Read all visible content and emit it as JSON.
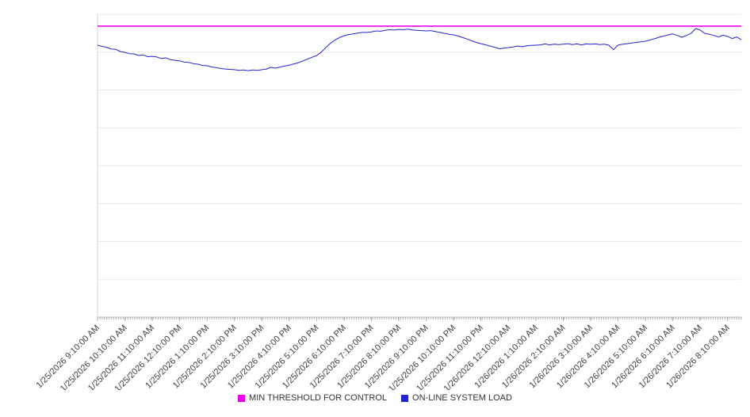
{
  "chart_data": {
    "type": "line",
    "title": "",
    "xlabel": "",
    "ylabel": "",
    "ylim": [
      0,
      100
    ],
    "gridline_count": 8,
    "grid_on": true,
    "legend_position": "bottom",
    "x_interval_minutes": 10,
    "x_labels": [
      "1/25/2026 9:10:00 AM",
      "1/25/2026 10:10:00 AM",
      "1/25/2026 11:10:00 AM",
      "1/25/2026 12:10:00 PM",
      "1/25/2026 1:10:00 PM",
      "1/25/2026 2:10:00 PM",
      "1/25/2026 3:10:00 PM",
      "1/25/2026 4:10:00 PM",
      "1/25/2026 5:10:00 PM",
      "1/25/2026 6:10:00 PM",
      "1/25/2026 7:10:00 PM",
      "1/25/2026 8:10:00 PM",
      "1/25/2026 9:10:00 PM",
      "1/25/2026 10:10:00 PM",
      "1/25/2026 11:10:00 PM",
      "1/26/2026 12:10:00 AM",
      "1/26/2026 1:10:00 AM",
      "1/26/2026 2:10:00 AM",
      "1/26/2026 3:10:00 AM",
      "1/26/2026 4:10:00 AM",
      "1/26/2026 5:10:00 AM",
      "1/26/2026 6:10:00 AM",
      "1/26/2026 7:10:00 AM",
      "1/26/2026 8:10:00 AM"
    ],
    "points_per_hour": 6,
    "series": [
      {
        "name": "MIN THRESHOLD FOR CONTROL",
        "color": "#ee00ee",
        "constant_value": 96.1
      },
      {
        "name": "ON-LINE SYSTEM LOAD",
        "color": "#2424cc",
        "values": [
          89.8,
          89.4,
          89.1,
          88.5,
          88.4,
          87.7,
          87.4,
          87.0,
          86.9,
          86.4,
          86.6,
          86.0,
          86.1,
          85.9,
          85.4,
          85.6,
          85.0,
          84.8,
          84.6,
          84.2,
          84.1,
          83.7,
          83.5,
          83.1,
          83.0,
          82.6,
          82.4,
          82.1,
          81.9,
          81.8,
          81.7,
          81.5,
          81.6,
          81.4,
          81.6,
          81.5,
          81.7,
          81.9,
          82.5,
          82.2,
          82.6,
          82.9,
          83.2,
          83.6,
          84.0,
          84.6,
          85.2,
          85.8,
          86.4,
          87.5,
          89.0,
          90.4,
          91.5,
          92.3,
          92.9,
          93.3,
          93.5,
          93.8,
          94.0,
          94.0,
          94.2,
          94.5,
          94.4,
          94.7,
          94.9,
          94.8,
          95.0,
          94.9,
          95.1,
          94.8,
          94.7,
          94.6,
          94.5,
          94.6,
          94.3,
          94.0,
          93.7,
          93.4,
          93.2,
          92.8,
          92.3,
          91.8,
          91.2,
          90.7,
          90.3,
          89.9,
          89.5,
          89.1,
          88.6,
          88.8,
          89.0,
          89.2,
          89.5,
          89.3,
          89.6,
          89.7,
          89.8,
          89.9,
          90.2,
          89.9,
          90.1,
          90.0,
          90.1,
          90.3,
          90.0,
          90.2,
          89.9,
          90.2,
          90.1,
          90.2,
          90.0,
          90.1,
          89.8,
          88.3,
          89.8,
          90.1,
          90.3,
          90.5,
          90.7,
          90.9,
          91.1,
          91.5,
          91.9,
          92.4,
          92.8,
          93.2,
          93.5,
          93.0,
          92.4,
          93.0,
          93.7,
          95.3,
          94.8,
          93.7,
          93.4,
          93.0,
          92.5,
          93.1,
          92.7,
          92.0,
          92.5,
          91.6
        ]
      }
    ],
    "colors": {
      "grid": "#e8e8e8",
      "axis": "#b8b8b8",
      "tick": "#aaaaaa",
      "label": "#3f3f3f",
      "background": "#ffffff"
    }
  },
  "legend": {
    "items": [
      {
        "label": "MIN THRESHOLD FOR CONTROL",
        "color": "#ee00ee"
      },
      {
        "label": "ON-LINE SYSTEM LOAD",
        "color": "#2424cc"
      }
    ]
  }
}
